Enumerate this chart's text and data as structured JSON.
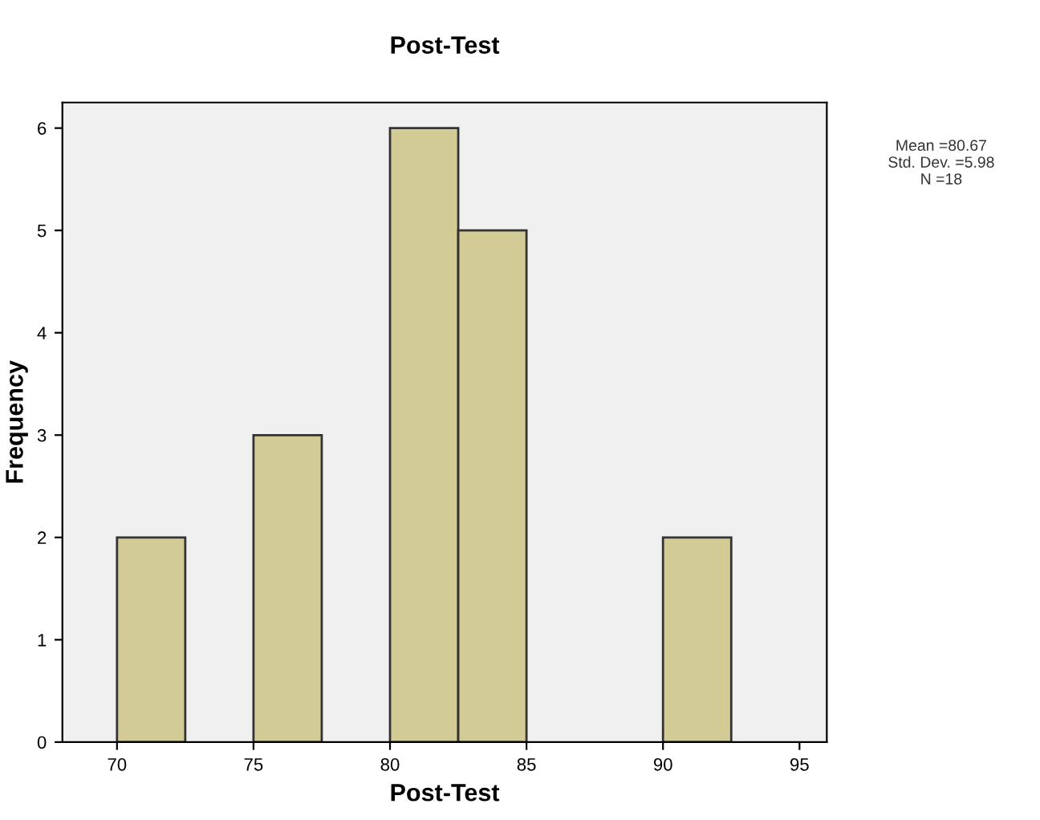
{
  "chart_data": {
    "type": "histogram",
    "title": "Post-Test",
    "xlabel": "Post-Test",
    "ylabel": "Frequency",
    "bins": [
      70,
      72.5,
      75,
      77.5,
      80,
      82.5,
      85,
      87.5,
      90,
      92.5
    ],
    "values": [
      2,
      0,
      3,
      0,
      6,
      5,
      0,
      0,
      2
    ],
    "color": "#d2cb95",
    "xlim": [
      68,
      96
    ],
    "xticks": [
      70,
      75,
      80,
      85,
      90,
      95
    ],
    "ylim": [
      0,
      6.25
    ],
    "yticks": [
      0,
      1,
      2,
      3,
      4,
      5,
      6
    ],
    "grid": false,
    "legend": false,
    "annotations": [
      "Mean =80.67\nStd. Dev. =5.98\nN =18"
    ]
  }
}
